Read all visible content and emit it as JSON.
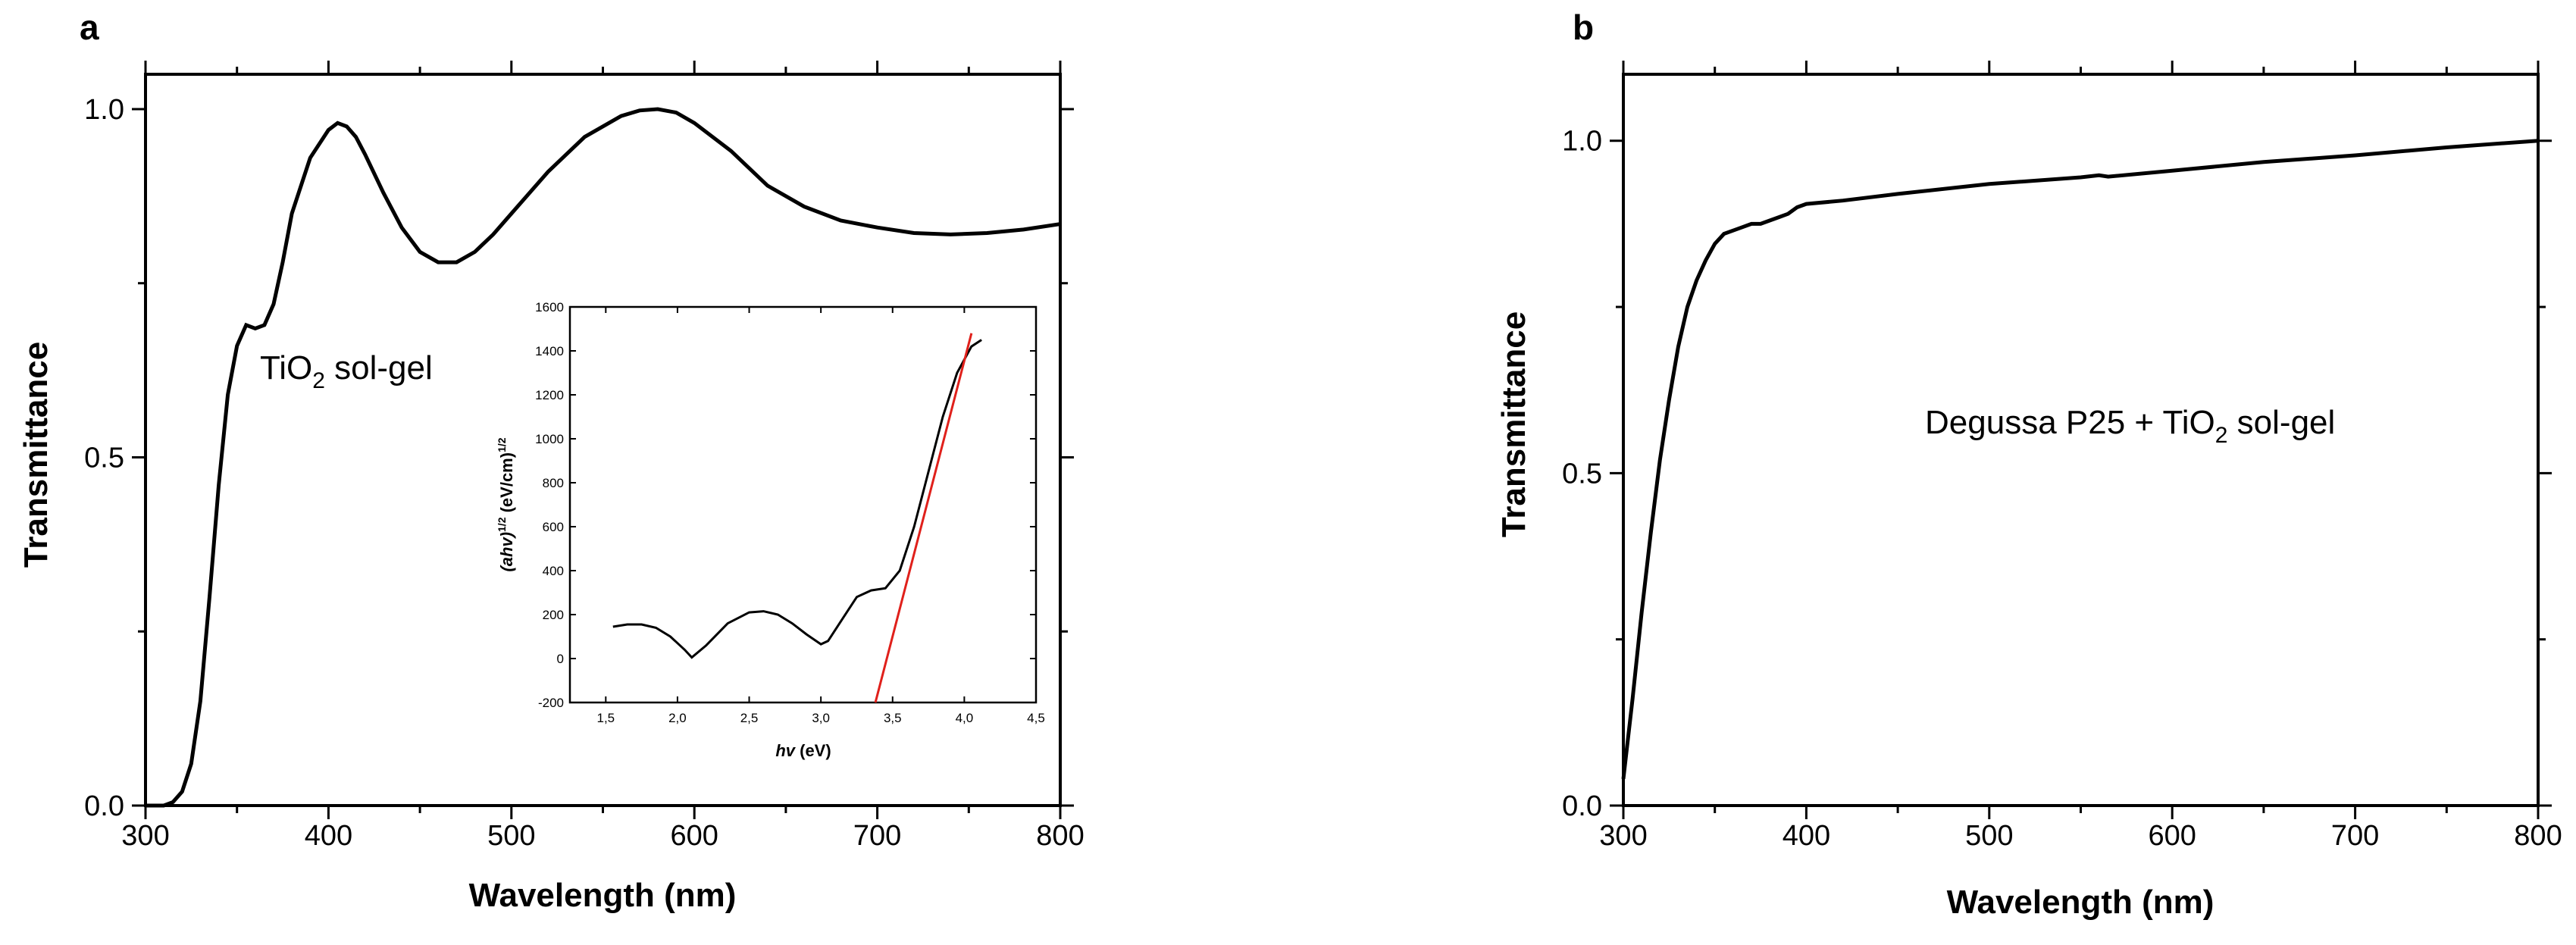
{
  "figure": {
    "colors": {
      "curve": "#000000",
      "fit_line": "#e0201b"
    }
  },
  "chart_data": [
    {
      "panel": "a",
      "type": "line",
      "title": "",
      "xlabel": "Wavelength (nm)",
      "ylabel": "Transmittance",
      "xlim": [
        300,
        800
      ],
      "ylim": [
        0,
        1.05
      ],
      "xticks": [
        300,
        400,
        500,
        600,
        700,
        800
      ],
      "xtick_labels": [
        "300",
        "400",
        "500",
        "600",
        "700",
        "800"
      ],
      "yticks": [
        0.0,
        0.5,
        1.0
      ],
      "ytick_labels": [
        "0.0",
        "0.5",
        "1.0"
      ],
      "annotation": {
        "main": "TiO",
        "sub": "2",
        "rest": " sol-gel"
      },
      "series": [
        {
          "name": "TiO2 sol-gel",
          "x": [
            300,
            310,
            315,
            320,
            325,
            330,
            335,
            340,
            345,
            350,
            355,
            360,
            365,
            370,
            375,
            380,
            390,
            400,
            405,
            410,
            415,
            420,
            430,
            440,
            450,
            460,
            470,
            480,
            490,
            500,
            520,
            540,
            560,
            570,
            580,
            590,
            600,
            620,
            640,
            660,
            680,
            700,
            720,
            740,
            760,
            780,
            800
          ],
          "y": [
            0.0,
            0.0,
            0.005,
            0.02,
            0.06,
            0.15,
            0.3,
            0.46,
            0.59,
            0.66,
            0.69,
            0.685,
            0.69,
            0.72,
            0.78,
            0.85,
            0.93,
            0.97,
            0.98,
            0.975,
            0.96,
            0.935,
            0.88,
            0.83,
            0.795,
            0.78,
            0.78,
            0.795,
            0.82,
            0.85,
            0.91,
            0.96,
            0.99,
            0.998,
            1.0,
            0.995,
            0.98,
            0.94,
            0.89,
            0.86,
            0.84,
            0.83,
            0.822,
            0.82,
            0.822,
            0.827,
            0.835
          ]
        }
      ],
      "inset": {
        "type": "line",
        "xlabel_main": "hv",
        "xlabel_unit": " (eV)",
        "ylabel_main": "(ahv)",
        "ylabel_sup1": "1/2",
        "ylabel_mid": " (eV/cm)",
        "ylabel_sup2": "1/2",
        "xlim": [
          1.25,
          4.5
        ],
        "ylim": [
          -200,
          1600
        ],
        "xticks": [
          1.5,
          2.0,
          2.5,
          3.0,
          3.5,
          4.0,
          4.5
        ],
        "xtick_labels": [
          "1,5",
          "2,0",
          "2,5",
          "3,0",
          "3,5",
          "4,0",
          "4,5"
        ],
        "yticks": [
          -200,
          0,
          200,
          400,
          600,
          800,
          1000,
          1200,
          1400,
          1600
        ],
        "ytick_labels": [
          "-200",
          "0",
          "200",
          "400",
          "600",
          "800",
          "1000",
          "1200",
          "1400",
          "1600"
        ],
        "series": [
          {
            "name": "Tauc curve",
            "x": [
              1.55,
              1.65,
              1.75,
              1.85,
              1.95,
              2.05,
              2.1,
              2.2,
              2.35,
              2.5,
              2.6,
              2.7,
              2.8,
              2.9,
              3.0,
              3.05,
              3.15,
              3.25,
              3.35,
              3.45,
              3.55,
              3.65,
              3.75,
              3.85,
              3.95,
              4.05,
              4.12
            ],
            "y": [
              145,
              155,
              155,
              140,
              100,
              40,
              5,
              60,
              160,
              210,
              215,
              200,
              160,
              110,
              65,
              80,
              180,
              280,
              310,
              320,
              400,
              600,
              850,
              1100,
              1300,
              1420,
              1450
            ]
          },
          {
            "name": "Linear fit",
            "x": [
              3.38,
              4.05
            ],
            "y": [
              -200,
              1480
            ]
          }
        ]
      }
    },
    {
      "panel": "b",
      "type": "line",
      "title": "",
      "xlabel": "Wavelength (nm)",
      "ylabel": "Transmittance",
      "xlim": [
        300,
        800
      ],
      "ylim": [
        0,
        1.1
      ],
      "xticks": [
        300,
        400,
        500,
        600,
        700,
        800
      ],
      "xtick_labels": [
        "300",
        "400",
        "500",
        "600",
        "700",
        "800"
      ],
      "yticks": [
        0.0,
        0.5,
        1.0
      ],
      "ytick_labels": [
        "0.0",
        "0.5",
        "1.0"
      ],
      "annotation": {
        "main": "Degussa P25 + TiO",
        "sub": "2",
        "rest": " sol-gel"
      },
      "series": [
        {
          "name": "Degussa P25 + TiO2 sol-gel",
          "x": [
            300,
            305,
            310,
            315,
            320,
            325,
            330,
            335,
            340,
            345,
            350,
            355,
            360,
            365,
            370,
            375,
            380,
            385,
            390,
            395,
            400,
            420,
            450,
            500,
            550,
            560,
            565,
            600,
            650,
            700,
            750,
            800
          ],
          "y": [
            0.04,
            0.16,
            0.29,
            0.41,
            0.52,
            0.61,
            0.69,
            0.75,
            0.79,
            0.82,
            0.845,
            0.86,
            0.865,
            0.87,
            0.875,
            0.875,
            0.88,
            0.885,
            0.89,
            0.9,
            0.905,
            0.91,
            0.92,
            0.935,
            0.945,
            0.948,
            0.946,
            0.955,
            0.968,
            0.978,
            0.99,
            1.0
          ]
        }
      ]
    }
  ]
}
